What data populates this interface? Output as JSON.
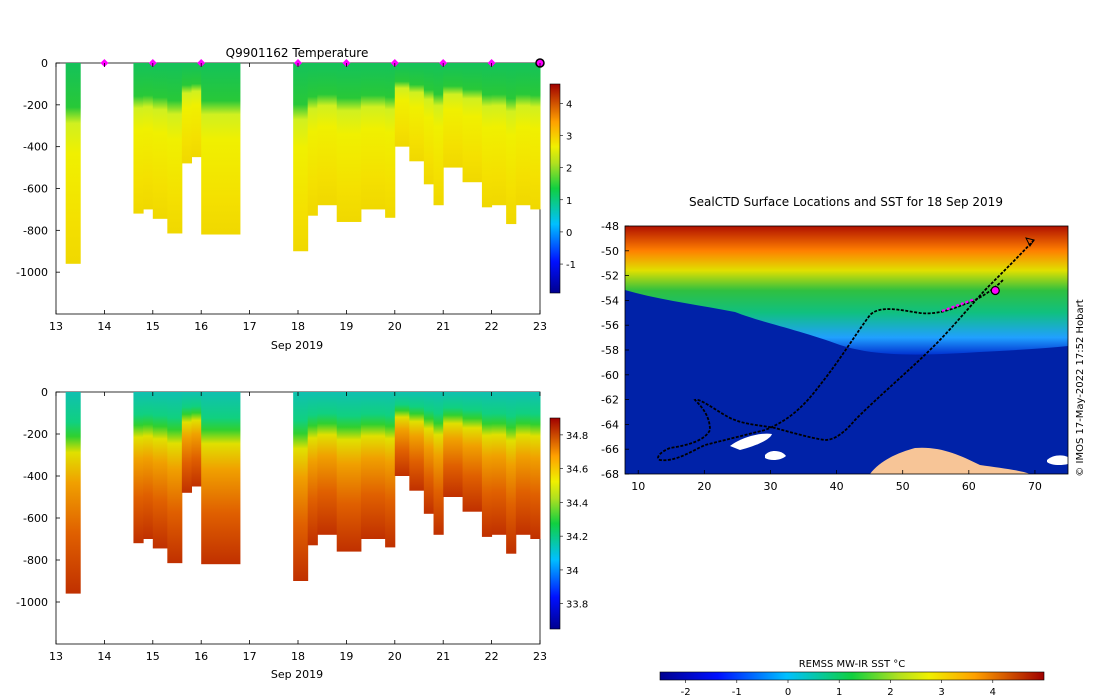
{
  "chart_data": [
    {
      "type": "heatmap",
      "title": "Q9901162  Temperature",
      "xlabel": "Sep 2019",
      "ylabel": "",
      "x_ticks": [
        "13",
        "14",
        "15",
        "16",
        "17",
        "18",
        "19",
        "20",
        "21",
        "22",
        "23"
      ],
      "x_range": [
        13,
        23
      ],
      "y_ticks": [
        "0",
        "-200",
        "-400",
        "-600",
        "-800",
        "-1000"
      ],
      "y_range": [
        -1200,
        0
      ],
      "colorbar": {
        "ticks": [
          "4",
          "3",
          "2",
          "1",
          "0",
          "-1"
        ],
        "range": [
          -1.9,
          4.6
        ]
      },
      "profile_markers": [
        14,
        15,
        16,
        18,
        19,
        20,
        21,
        22
      ],
      "profiles": [
        {
          "x": 13.25,
          "depth": 960,
          "cols": {
            "surf": 1.3,
            "mix": 0.5,
            "deep": 2.2
          }
        },
        {
          "x": 14.6,
          "depth": 720,
          "cols": {
            "surf": 1.2,
            "mix": 1.5,
            "deep": 2.4
          }
        },
        {
          "x": 16.0,
          "depth": 820,
          "cols": {
            "surf": 1.3,
            "mix": 1.6,
            "deep": 2.5
          }
        },
        {
          "x": 18.3,
          "depth": 900,
          "cols": {
            "surf": 1.4,
            "mix": 1.6,
            "deep": 2.5
          }
        },
        {
          "x": 20.2,
          "depth": 520,
          "cols": {
            "surf": 1.3,
            "mix": 1.5,
            "deep": 2.5
          }
        },
        {
          "x": 22.3,
          "depth": 770,
          "cols": {
            "surf": 1.4,
            "mix": 1.7,
            "deep": 2.6
          }
        }
      ]
    },
    {
      "type": "heatmap",
      "title": "",
      "xlabel": "Sep 2019",
      "ylabel": "",
      "x_ticks": [
        "13",
        "14",
        "15",
        "16",
        "17",
        "18",
        "19",
        "20",
        "21",
        "22",
        "23"
      ],
      "x_range": [
        13,
        23
      ],
      "y_ticks": [
        "0",
        "-200",
        "-400",
        "-600",
        "-800",
        "-1000"
      ],
      "y_range": [
        -1200,
        0
      ],
      "colorbar": {
        "ticks": [
          "34.8",
          "34.6",
          "34.4",
          "34.2",
          "34",
          "33.8"
        ],
        "range": [
          33.65,
          34.9
        ]
      }
    },
    {
      "type": "map",
      "title": "SealCTD Surface Locations and SST for 18 Sep 2019",
      "x_ticks": [
        "10",
        "20",
        "30",
        "40",
        "50",
        "60",
        "70"
      ],
      "x_range": [
        8,
        75
      ],
      "y_ticks": [
        "-48",
        "-50",
        "-52",
        "-54",
        "-56",
        "-58",
        "-60",
        "-62",
        "-64",
        "-66",
        "-68"
      ],
      "y_range": [
        -68,
        -48
      ],
      "highlight_point": {
        "lon": 64,
        "lat": -53.2
      },
      "colorbar": {
        "label": "REMSS MW-IR SST °C",
        "ticks": [
          "-2",
          "-1",
          "0",
          "1",
          "2",
          "3",
          "4"
        ],
        "range": [
          -2.5,
          5
        ]
      }
    }
  ],
  "side_text": "© IMOS 17-May-2022 17:52 Hobart"
}
